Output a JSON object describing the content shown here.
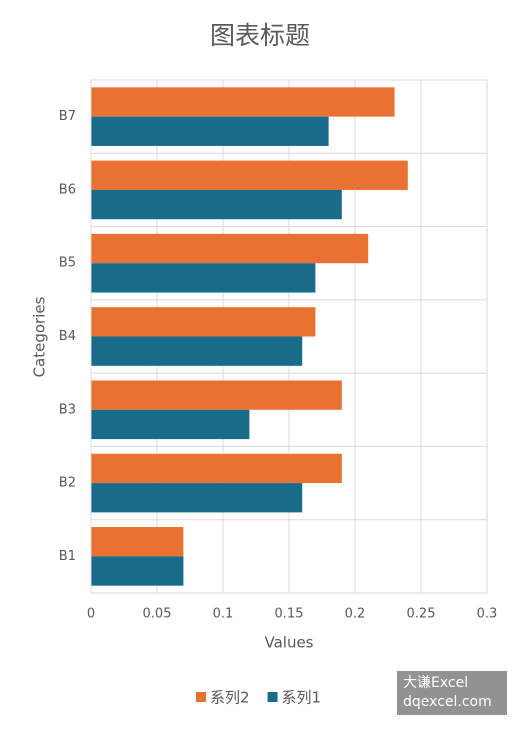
{
  "chart_data": {
    "type": "bar",
    "orientation": "horizontal",
    "title": "图表标题",
    "x_label": "Values",
    "y_label": "Categories",
    "categories": [
      "B1",
      "B2",
      "B3",
      "B4",
      "B5",
      "B6",
      "B7"
    ],
    "series": [
      {
        "name": "系列2",
        "color": "#e97132",
        "values": [
          0.07,
          0.19,
          0.19,
          0.17,
          0.21,
          0.24,
          0.23
        ]
      },
      {
        "name": "系列1",
        "color": "#196b8a",
        "values": [
          0.07,
          0.16,
          0.12,
          0.16,
          0.17,
          0.19,
          0.18
        ]
      }
    ],
    "xlim": [
      0,
      0.3
    ],
    "xticks": [
      0,
      0.05,
      0.1,
      0.15,
      0.2,
      0.25,
      0.3
    ],
    "grid": true,
    "legend": "bottom"
  },
  "watermark": [
    "大谦Excel",
    "dqexcel.com"
  ]
}
